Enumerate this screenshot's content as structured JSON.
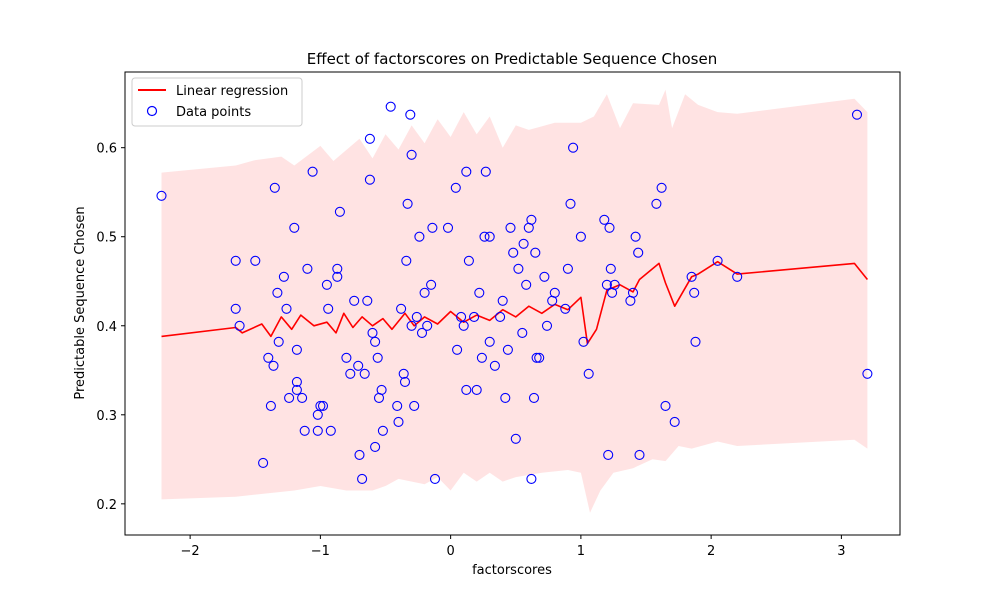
{
  "chart_data": {
    "type": "scatter",
    "title": "Effect of factorscores on Predictable Sequence Chosen",
    "xlabel": "factorscores",
    "ylabel": "Predictable Sequence Chosen",
    "xlim": [
      -2.5,
      3.45
    ],
    "ylim": [
      0.165,
      0.685
    ],
    "xticks": [
      -2,
      -1,
      0,
      1,
      2,
      3
    ],
    "yticks": [
      0.2,
      0.3,
      0.4,
      0.5,
      0.6
    ],
    "xtick_labels": [
      "−2",
      "−1",
      "0",
      "1",
      "2",
      "3"
    ],
    "ytick_labels": [
      "0.2",
      "0.3",
      "0.4",
      "0.5",
      "0.6"
    ],
    "legend": {
      "position": "top-left",
      "entries": [
        {
          "label": "Linear regression",
          "kind": "line",
          "color": "#ff0000"
        },
        {
          "label": "Data points",
          "kind": "marker",
          "color": "#0000ff"
        }
      ]
    },
    "regression_line": {
      "name": "Linear regression",
      "color": "#ff0000",
      "points": [
        [
          -2.22,
          0.388
        ],
        [
          -1.65,
          0.398
        ],
        [
          -1.6,
          0.392
        ],
        [
          -1.45,
          0.402
        ],
        [
          -1.38,
          0.388
        ],
        [
          -1.3,
          0.41
        ],
        [
          -1.22,
          0.396
        ],
        [
          -1.15,
          0.412
        ],
        [
          -1.05,
          0.4
        ],
        [
          -0.95,
          0.404
        ],
        [
          -0.88,
          0.392
        ],
        [
          -0.82,
          0.414
        ],
        [
          -0.75,
          0.398
        ],
        [
          -0.68,
          0.41
        ],
        [
          -0.6,
          0.4
        ],
        [
          -0.52,
          0.408
        ],
        [
          -0.45,
          0.396
        ],
        [
          -0.35,
          0.414
        ],
        [
          -0.28,
          0.4
        ],
        [
          -0.2,
          0.41
        ],
        [
          -0.1,
          0.402
        ],
        [
          0.0,
          0.416
        ],
        [
          0.1,
          0.404
        ],
        [
          0.2,
          0.412
        ],
        [
          0.3,
          0.406
        ],
        [
          0.4,
          0.418
        ],
        [
          0.5,
          0.41
        ],
        [
          0.6,
          0.422
        ],
        [
          0.7,
          0.414
        ],
        [
          0.8,
          0.424
        ],
        [
          0.9,
          0.418
        ],
        [
          1.0,
          0.432
        ],
        [
          1.05,
          0.38
        ],
        [
          1.12,
          0.396
        ],
        [
          1.2,
          0.44
        ],
        [
          1.3,
          0.446
        ],
        [
          1.4,
          0.438
        ],
        [
          1.45,
          0.452
        ],
        [
          1.6,
          0.47
        ],
        [
          1.65,
          0.448
        ],
        [
          1.72,
          0.422
        ],
        [
          1.85,
          0.455
        ],
        [
          1.9,
          0.458
        ],
        [
          2.05,
          0.472
        ],
        [
          2.2,
          0.458
        ],
        [
          3.1,
          0.47
        ],
        [
          3.2,
          0.452
        ]
      ]
    },
    "confidence_band": {
      "color": "#ffc0c0",
      "upper": [
        [
          -2.22,
          0.572
        ],
        [
          -1.65,
          0.58
        ],
        [
          -1.5,
          0.586
        ],
        [
          -1.3,
          0.59
        ],
        [
          -1.2,
          0.58
        ],
        [
          -1.0,
          0.602
        ],
        [
          -0.9,
          0.585
        ],
        [
          -0.7,
          0.61
        ],
        [
          -0.6,
          0.588
        ],
        [
          -0.5,
          0.615
        ],
        [
          -0.4,
          0.598
        ],
        [
          -0.3,
          0.625
        ],
        [
          -0.2,
          0.605
        ],
        [
          -0.1,
          0.632
        ],
        [
          0.0,
          0.612
        ],
        [
          0.1,
          0.64
        ],
        [
          0.2,
          0.615
        ],
        [
          0.3,
          0.635
        ],
        [
          0.4,
          0.6
        ],
        [
          0.5,
          0.625
        ],
        [
          0.6,
          0.62
        ],
        [
          0.8,
          0.628
        ],
        [
          1.0,
          0.628
        ],
        [
          1.1,
          0.635
        ],
        [
          1.2,
          0.66
        ],
        [
          1.3,
          0.622
        ],
        [
          1.4,
          0.65
        ],
        [
          1.6,
          0.648
        ],
        [
          1.65,
          0.665
        ],
        [
          1.7,
          0.622
        ],
        [
          1.8,
          0.66
        ],
        [
          1.9,
          0.648
        ],
        [
          2.05,
          0.64
        ],
        [
          2.2,
          0.638
        ],
        [
          3.1,
          0.655
        ],
        [
          3.2,
          0.64
        ]
      ],
      "lower": [
        [
          -2.22,
          0.205
        ],
        [
          -1.65,
          0.208
        ],
        [
          -1.4,
          0.212
        ],
        [
          -1.2,
          0.215
        ],
        [
          -1.0,
          0.22
        ],
        [
          -0.8,
          0.215
        ],
        [
          -0.6,
          0.215
        ],
        [
          -0.5,
          0.22
        ],
        [
          -0.4,
          0.228
        ],
        [
          -0.2,
          0.222
        ],
        [
          -0.1,
          0.23
        ],
        [
          0.0,
          0.215
        ],
        [
          0.1,
          0.235
        ],
        [
          0.2,
          0.225
        ],
        [
          0.3,
          0.235
        ],
        [
          0.4,
          0.225
        ],
        [
          0.5,
          0.23
        ],
        [
          0.7,
          0.235
        ],
        [
          0.9,
          0.238
        ],
        [
          1.0,
          0.235
        ],
        [
          1.07,
          0.19
        ],
        [
          1.15,
          0.215
        ],
        [
          1.25,
          0.235
        ],
        [
          1.4,
          0.24
        ],
        [
          1.55,
          0.25
        ],
        [
          1.65,
          0.248
        ],
        [
          1.75,
          0.265
        ],
        [
          1.85,
          0.262
        ],
        [
          2.05,
          0.27
        ],
        [
          2.2,
          0.265
        ],
        [
          3.1,
          0.272
        ],
        [
          3.2,
          0.262
        ]
      ]
    },
    "scatter_points": {
      "name": "Data points",
      "color": "#0000ff",
      "points": [
        [
          -2.22,
          0.546
        ],
        [
          -1.65,
          0.473
        ],
        [
          -1.65,
          0.419
        ],
        [
          -1.62,
          0.4
        ],
        [
          -1.5,
          0.473
        ],
        [
          -1.44,
          0.246
        ],
        [
          -1.4,
          0.364
        ],
        [
          -1.38,
          0.31
        ],
        [
          -1.36,
          0.355
        ],
        [
          -1.35,
          0.555
        ],
        [
          -1.33,
          0.437
        ],
        [
          -1.32,
          0.382
        ],
        [
          -1.28,
          0.455
        ],
        [
          -1.26,
          0.419
        ],
        [
          -1.24,
          0.319
        ],
        [
          -1.2,
          0.51
        ],
        [
          -1.18,
          0.337
        ],
        [
          -1.18,
          0.328
        ],
        [
          -1.18,
          0.373
        ],
        [
          -1.14,
          0.319
        ],
        [
          -1.12,
          0.282
        ],
        [
          -1.1,
          0.464
        ],
        [
          -1.06,
          0.573
        ],
        [
          -1.02,
          0.3
        ],
        [
          -1.02,
          0.282
        ],
        [
          -1.0,
          0.31
        ],
        [
          -0.98,
          0.31
        ],
        [
          -0.95,
          0.446
        ],
        [
          -0.94,
          0.419
        ],
        [
          -0.92,
          0.282
        ],
        [
          -0.87,
          0.464
        ],
        [
          -0.87,
          0.455
        ],
        [
          -0.85,
          0.528
        ],
        [
          -0.8,
          0.364
        ],
        [
          -0.77,
          0.346
        ],
        [
          -0.74,
          0.428
        ],
        [
          -0.71,
          0.355
        ],
        [
          -0.7,
          0.255
        ],
        [
          -0.68,
          0.228
        ],
        [
          -0.66,
          0.346
        ],
        [
          -0.64,
          0.428
        ],
        [
          -0.62,
          0.61
        ],
        [
          -0.62,
          0.564
        ],
        [
          -0.6,
          0.392
        ],
        [
          -0.58,
          0.382
        ],
        [
          -0.58,
          0.264
        ],
        [
          -0.56,
          0.364
        ],
        [
          -0.55,
          0.319
        ],
        [
          -0.53,
          0.328
        ],
        [
          -0.52,
          0.282
        ],
        [
          -0.46,
          0.646
        ],
        [
          -0.41,
          0.31
        ],
        [
          -0.4,
          0.292
        ],
        [
          -0.38,
          0.419
        ],
        [
          -0.36,
          0.346
        ],
        [
          -0.35,
          0.337
        ],
        [
          -0.34,
          0.473
        ],
        [
          -0.33,
          0.537
        ],
        [
          -0.31,
          0.637
        ],
        [
          -0.3,
          0.592
        ],
        [
          -0.3,
          0.4
        ],
        [
          -0.28,
          0.31
        ],
        [
          -0.26,
          0.41
        ],
        [
          -0.24,
          0.5
        ],
        [
          -0.22,
          0.392
        ],
        [
          -0.2,
          0.437
        ],
        [
          -0.18,
          0.4
        ],
        [
          -0.15,
          0.446
        ],
        [
          -0.14,
          0.51
        ],
        [
          -0.12,
          0.228
        ],
        [
          -0.02,
          0.51
        ],
        [
          0.04,
          0.555
        ],
        [
          0.05,
          0.373
        ],
        [
          0.08,
          0.41
        ],
        [
          0.1,
          0.4
        ],
        [
          0.12,
          0.328
        ],
        [
          0.12,
          0.573
        ],
        [
          0.14,
          0.473
        ],
        [
          0.18,
          0.41
        ],
        [
          0.2,
          0.328
        ],
        [
          0.22,
          0.437
        ],
        [
          0.24,
          0.364
        ],
        [
          0.26,
          0.5
        ],
        [
          0.27,
          0.573
        ],
        [
          0.3,
          0.382
        ],
        [
          0.3,
          0.5
        ],
        [
          0.34,
          0.355
        ],
        [
          0.38,
          0.41
        ],
        [
          0.4,
          0.428
        ],
        [
          0.42,
          0.319
        ],
        [
          0.44,
          0.373
        ],
        [
          0.46,
          0.51
        ],
        [
          0.48,
          0.482
        ],
        [
          0.5,
          0.273
        ],
        [
          0.52,
          0.464
        ],
        [
          0.55,
          0.392
        ],
        [
          0.56,
          0.492
        ],
        [
          0.58,
          0.446
        ],
        [
          0.6,
          0.51
        ],
        [
          0.62,
          0.519
        ],
        [
          0.62,
          0.228
        ],
        [
          0.64,
          0.319
        ],
        [
          0.65,
          0.482
        ],
        [
          0.66,
          0.364
        ],
        [
          0.68,
          0.364
        ],
        [
          0.72,
          0.455
        ],
        [
          0.74,
          0.4
        ],
        [
          0.78,
          0.428
        ],
        [
          0.8,
          0.437
        ],
        [
          0.88,
          0.419
        ],
        [
          0.9,
          0.464
        ],
        [
          0.92,
          0.537
        ],
        [
          0.94,
          0.6
        ],
        [
          1.0,
          0.5
        ],
        [
          1.02,
          0.382
        ],
        [
          1.06,
          0.346
        ],
        [
          1.18,
          0.519
        ],
        [
          1.2,
          0.446
        ],
        [
          1.21,
          0.255
        ],
        [
          1.22,
          0.51
        ],
        [
          1.23,
          0.464
        ],
        [
          1.24,
          0.437
        ],
        [
          1.26,
          0.446
        ],
        [
          1.38,
          0.428
        ],
        [
          1.4,
          0.437
        ],
        [
          1.42,
          0.5
        ],
        [
          1.44,
          0.482
        ],
        [
          1.45,
          0.255
        ],
        [
          1.58,
          0.537
        ],
        [
          1.62,
          0.555
        ],
        [
          1.65,
          0.31
        ],
        [
          1.72,
          0.292
        ],
        [
          1.85,
          0.455
        ],
        [
          1.87,
          0.437
        ],
        [
          1.88,
          0.382
        ],
        [
          2.05,
          0.473
        ],
        [
          2.2,
          0.455
        ],
        [
          3.12,
          0.637
        ],
        [
          3.2,
          0.346
        ]
      ]
    }
  }
}
